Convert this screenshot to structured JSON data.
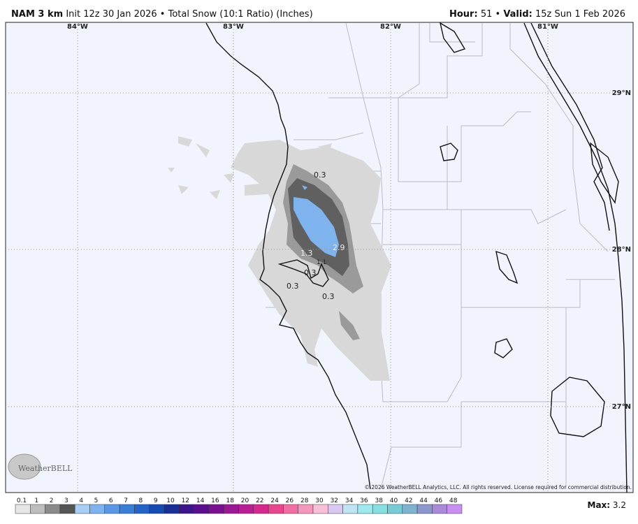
{
  "header": {
    "model": "NAM 3 km",
    "description": "Init 12z 30 Jan 2026 • Total Snow (10:1 Ratio) (Inches)",
    "hour_label": "Hour:",
    "hour": "51",
    "separator": "•",
    "valid_label": "Valid:",
    "valid": "15z Sun 1 Feb 2026"
  },
  "map": {
    "longitudes": [
      "84°W",
      "83°W",
      "82°W",
      "81°W"
    ],
    "latitudes": [
      "29°N",
      "28°N",
      "27°N"
    ],
    "contour_labels": [
      "0.3",
      "1.3",
      "2.9",
      "0.3",
      "1.1",
      "0.3",
      "0.3"
    ],
    "logo": "WeatherBELL",
    "copyright": "© 2026 WeatherBELL Analytics, LLC. All rights reserved. License required for commercial distribution."
  },
  "colorbar": {
    "labels": [
      "0.1",
      "1",
      "2",
      "3",
      "4",
      "5",
      "6",
      "7",
      "8",
      "9",
      "10",
      "12",
      "14",
      "16",
      "18",
      "20",
      "22",
      "24",
      "26",
      "28",
      "30",
      "32",
      "34",
      "36",
      "38",
      "40",
      "42",
      "44",
      "46",
      "48"
    ],
    "colors": [
      "#e6e6e6",
      "#bdbdbd",
      "#8a8a8a",
      "#555555",
      "#a9cdf5",
      "#7fb3ee",
      "#5a98e6",
      "#3a7ed8",
      "#2364c6",
      "#164bb0",
      "#1a2f96",
      "#3a168a",
      "#5a0f8c",
      "#7a1190",
      "#9a1a94",
      "#b81f92",
      "#d42a8e",
      "#e8468f",
      "#ef6fa3",
      "#f497bd",
      "#f7bfd8",
      "#d9c9f2",
      "#bfe4f4",
      "#9ee9ee",
      "#86dfe0",
      "#79cbd6",
      "#7fb2cf",
      "#8c98cc",
      "#a98ad9",
      "#c88ff0"
    ],
    "max_label": "Max:",
    "max": "3.2"
  }
}
